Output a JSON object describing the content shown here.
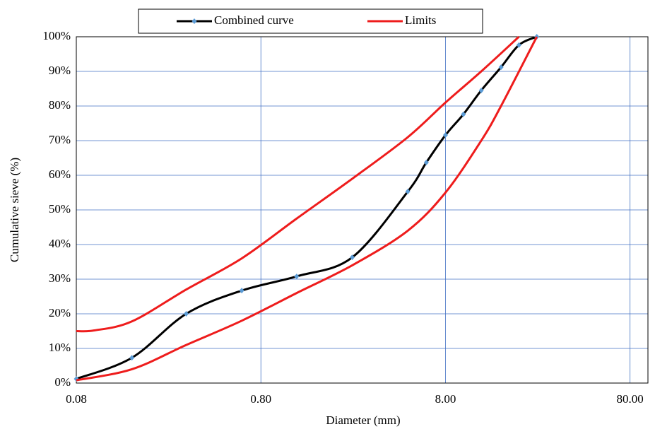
{
  "chart_data": {
    "type": "line",
    "x_label": "Diameter (mm)",
    "y_label": "Cumulative sieve (%)",
    "xscale": "log",
    "xlim": [
      0.08,
      100
    ],
    "ylim": [
      0,
      100
    ],
    "grid": true,
    "legend": "top",
    "xticks": [
      {
        "value": 0.08,
        "label": "0.08"
      },
      {
        "value": 0.8,
        "label": "0.80"
      },
      {
        "value": 8,
        "label": "8.00"
      },
      {
        "value": 80,
        "label": "80.00"
      }
    ],
    "yticks": [
      {
        "value": 0,
        "label": "0%"
      },
      {
        "value": 10,
        "label": "10%"
      },
      {
        "value": 20,
        "label": "20%"
      },
      {
        "value": 30,
        "label": "30%"
      },
      {
        "value": 40,
        "label": "40%"
      },
      {
        "value": 50,
        "label": "50%"
      },
      {
        "value": 60,
        "label": "60%"
      },
      {
        "value": 70,
        "label": "70%"
      },
      {
        "value": 80,
        "label": "80%"
      },
      {
        "value": 90,
        "label": "90%"
      },
      {
        "value": 100,
        "label": "100%"
      }
    ],
    "series": [
      {
        "name": "Combined curve",
        "color": "#000000",
        "marker_color": "#5b9bd5",
        "x": [
          0.08,
          0.16,
          0.315,
          0.63,
          1.25,
          2.5,
          5,
          6.3,
          8,
          10,
          12.5,
          16,
          20,
          25
        ],
        "values": [
          1.2,
          7.3,
          20,
          26.7,
          30.8,
          36.3,
          55.3,
          63.7,
          71.6,
          77.6,
          84.5,
          91.2,
          97.6,
          100
        ]
      },
      {
        "name": "Limits",
        "color": "#ee1c1c",
        "x": [
          0.08,
          0.1,
          0.16,
          0.315,
          0.63,
          1.25,
          2.5,
          5,
          8,
          12.5,
          20
        ],
        "values": [
          15,
          15.2,
          17.8,
          27,
          36,
          47.5,
          59,
          71,
          81,
          90,
          100
        ]
      },
      {
        "color": "#ee1c1c",
        "x": [
          0.08,
          0.16,
          0.315,
          0.63,
          1.25,
          2.5,
          5,
          8,
          12.5,
          16,
          25
        ],
        "values": [
          0.8,
          4,
          11,
          18,
          26,
          34,
          44,
          55,
          70,
          80,
          100
        ]
      }
    ]
  }
}
